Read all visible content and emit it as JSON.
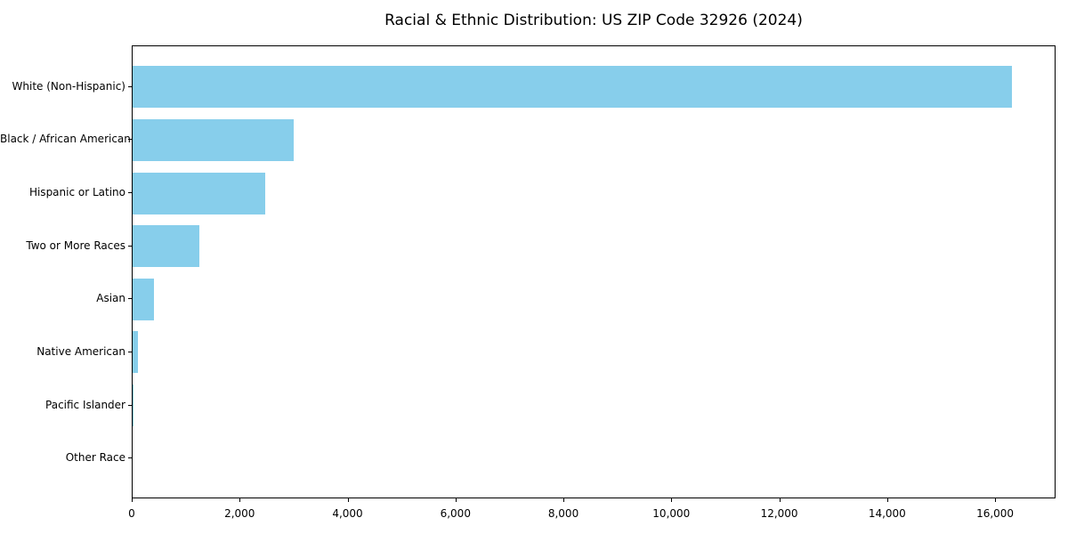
{
  "title": "Racial & Ethnic Distribution: US ZIP Code 32926 (2024)",
  "chart_data": {
    "type": "bar",
    "orientation": "horizontal",
    "title": "Racial & Ethnic Distribution: US ZIP Code 32926 (2024)",
    "categories": [
      "White (Non-Hispanic)",
      "Black / African American",
      "Hispanic or Latino",
      "Two or More Races",
      "Asian",
      "Native American",
      "Pacific Islander",
      "Other Race"
    ],
    "values": [
      16290,
      2980,
      2450,
      1230,
      400,
      100,
      20,
      0
    ],
    "xlabel": "",
    "ylabel": "",
    "xlim": [
      0,
      17120
    ],
    "x_ticks": [
      0,
      2000,
      4000,
      6000,
      8000,
      10000,
      12000,
      14000,
      16000
    ],
    "x_tick_labels": [
      "0",
      "2,000",
      "4,000",
      "6,000",
      "8,000",
      "10,000",
      "12,000",
      "14,000",
      "16,000"
    ],
    "bar_color": "#87CEEB",
    "axis_color": "#000000",
    "text_color": "#000000",
    "background_color": "#FFFFFF",
    "grid": false,
    "legend_position": "none"
  }
}
